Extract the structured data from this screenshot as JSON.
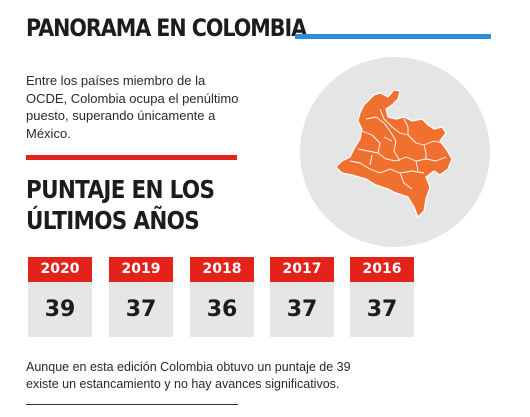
{
  "header": {
    "title": "PANORAMA EN COLOMBIA"
  },
  "intro": {
    "text": "Entre los países miembro de la OCDE, Colombia ocupa el penúltimo puesto, superando únicamente a México."
  },
  "scores_section": {
    "title": "PUNTAJE EN LOS\nÚLTIMOS AÑOS",
    "cards": [
      {
        "year": "2020",
        "score": "39"
      },
      {
        "year": "2019",
        "score": "37"
      },
      {
        "year": "2018",
        "score": "36"
      },
      {
        "year": "2017",
        "score": "37"
      },
      {
        "year": "2016",
        "score": "37"
      }
    ]
  },
  "outro": {
    "text": "Aunque en esta edición Colombia obtuvo un puntaje de 39 existe un estancamiento y no hay avances significativos."
  },
  "map": {
    "icon": "colombia-map-icon",
    "fill_color": "#f07030",
    "background_color": "#e5e5e5"
  },
  "colors": {
    "accent_red": "#e3231a",
    "accent_blue": "#2f8dd8",
    "card_background": "#e6e6e6"
  }
}
